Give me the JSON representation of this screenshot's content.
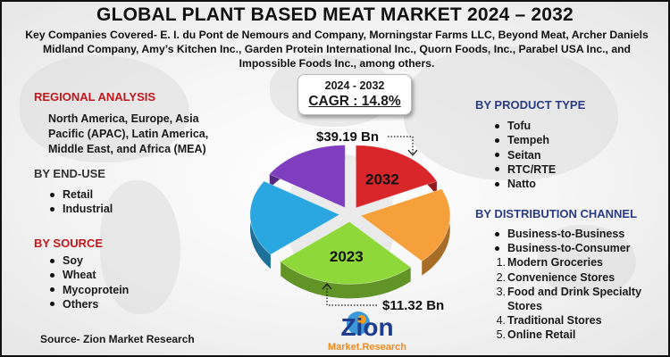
{
  "title": "GLOBAL PLANT BASED MEAT MARKET 2024 – 2032",
  "subtitle": "Key Companies Covered- E. I. du Pont de Nemours and Company, Morningstar Farms LLC, Beyond Meat, Archer Daniels Midland Company, Amy’s Kitchen Inc., Garden Protein International Inc., Quorn Foods, Inc., Parabel USA Inc., and Impossible Foods Inc., among others.",
  "cagr": {
    "period": "2024 - 2032",
    "value": "CAGR : 14.8%"
  },
  "regional": {
    "heading": "REGIONAL ANALYSIS",
    "text": "North America, Europe, Asia Pacific (APAC), Latin America, Middle East, and Africa (MEA)"
  },
  "end_use": {
    "heading": "BY END-USE",
    "items": [
      "Retail",
      "Industrial"
    ]
  },
  "source_seg": {
    "heading": "BY SOURCE",
    "items": [
      "Soy",
      "Wheat",
      "Mycoprotein",
      "Others"
    ]
  },
  "product_type": {
    "heading": "BY PRODUCT TYPE",
    "items": [
      "Tofu",
      "Tempeh",
      "Seitan",
      "RTC/RTE",
      "Natto"
    ]
  },
  "distribution": {
    "heading": "BY DISTRIBUTION CHANNEL",
    "bullets": [
      "Business-to-Business",
      "Business-to-Consumer"
    ],
    "numbered": [
      {
        "num": "1.",
        "label": "Modern Groceries"
      },
      {
        "num": "2.",
        "label": "Convenience Stores"
      },
      {
        "num": "3.",
        "label": "Food and Drink Specialty Stores"
      },
      {
        "num": "4.",
        "label": "Traditional Stores"
      },
      {
        "num": "5.",
        "label": "Online Retail"
      }
    ]
  },
  "source_note": "Source- Zion Market Research",
  "logo": {
    "word": "Zion",
    "tagline": "Market.Research"
  },
  "chart_data": {
    "type": "pie",
    "slices": [
      {
        "label": "2032",
        "color": "#d9262b",
        "fraction": 0.18
      },
      {
        "label": "",
        "color": "#f5a03a",
        "fraction": 0.2
      },
      {
        "label": "2023",
        "color": "#8ed83a",
        "fraction": 0.26
      },
      {
        "label": "",
        "color": "#2aa6e0",
        "fraction": 0.2
      },
      {
        "label": "",
        "color": "#7f3dbf",
        "fraction": 0.16
      }
    ],
    "annotations": [
      {
        "text": "$39.19 Bn",
        "year": "2032"
      },
      {
        "text": "$11.32 Bn",
        "year": "2023"
      }
    ]
  }
}
